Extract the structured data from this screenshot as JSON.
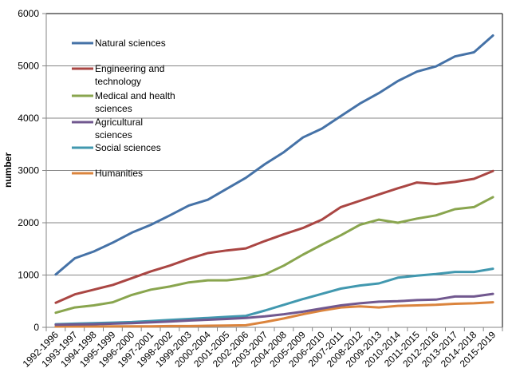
{
  "chart_data": {
    "type": "line",
    "title": "",
    "xlabel": "",
    "ylabel": "number",
    "ylim": [
      0,
      6000
    ],
    "yticks": [
      0,
      1000,
      2000,
      3000,
      4000,
      5000,
      6000
    ],
    "ytick_labels": [
      "0",
      "1000",
      "2000",
      "3000",
      "4000",
      "5000",
      "6000"
    ],
    "grid": true,
    "legend_position": "top-left (inside)",
    "categories": [
      "1992-1996",
      "1993-1997",
      "1994-1998",
      "1995-1999",
      "1996-2000",
      "1997-2001",
      "1998-2002",
      "1999-2003",
      "2000-2004",
      "2001-2005",
      "2002-2006",
      "2003-2007",
      "2004-2008",
      "2005-2009",
      "2006-2010",
      "2007-2011",
      "2008-2012",
      "2009-2013",
      "2010-2014",
      "2011-2015",
      "2012-2016",
      "2013-2017",
      "2014-2018",
      "2015-2019"
    ],
    "series": [
      {
        "name": "Natural sciences",
        "legend_lines": [
          "Natural sciences"
        ],
        "color": "#4572a7",
        "values": [
          1010,
          1320,
          1450,
          1620,
          1810,
          1960,
          2140,
          2330,
          2440,
          2650,
          2860,
          3120,
          3350,
          3630,
          3800,
          4040,
          4280,
          4480,
          4710,
          4890,
          4990,
          5180,
          5260,
          5580
        ]
      },
      {
        "name": "Engineering and technology",
        "legend_lines": [
          "Engineering and",
          "technology"
        ],
        "color": "#aa4643",
        "values": [
          470,
          630,
          720,
          810,
          940,
          1070,
          1180,
          1310,
          1420,
          1470,
          1510,
          1650,
          1780,
          1900,
          2060,
          2300,
          2420,
          2540,
          2660,
          2770,
          2740,
          2780,
          2840,
          2990
        ]
      },
      {
        "name": "Medical and health sciences",
        "legend_lines": [
          "Medical and health",
          "sciences"
        ],
        "color": "#89a54e",
        "values": [
          280,
          380,
          420,
          480,
          620,
          720,
          780,
          860,
          900,
          900,
          940,
          1010,
          1180,
          1390,
          1580,
          1760,
          1960,
          2060,
          2000,
          2080,
          2140,
          2260,
          2300,
          2490
        ]
      },
      {
        "name": "Agricultural sciences",
        "legend_lines": [
          "Agricultural",
          "sciences"
        ],
        "color": "#71588f",
        "values": [
          50,
          55,
          60,
          70,
          80,
          95,
          110,
          130,
          145,
          160,
          180,
          210,
          250,
          300,
          360,
          420,
          460,
          490,
          500,
          520,
          530,
          590,
          590,
          640
        ]
      },
      {
        "name": "Social sciences",
        "legend_lines": [
          "Social sciences"
        ],
        "color": "#4198af",
        "values": [
          60,
          70,
          80,
          90,
          100,
          120,
          140,
          160,
          180,
          200,
          220,
          320,
          430,
          540,
          640,
          740,
          800,
          840,
          950,
          990,
          1020,
          1060,
          1060,
          1120
        ]
      },
      {
        "name": "Humanities",
        "legend_lines": [
          "Humanities"
        ],
        "color": "#db843d",
        "values": [
          15,
          15,
          15,
          20,
          20,
          20,
          25,
          25,
          30,
          35,
          40,
          100,
          170,
          250,
          320,
          380,
          400,
          380,
          410,
          420,
          430,
          450,
          460,
          480
        ]
      }
    ]
  }
}
